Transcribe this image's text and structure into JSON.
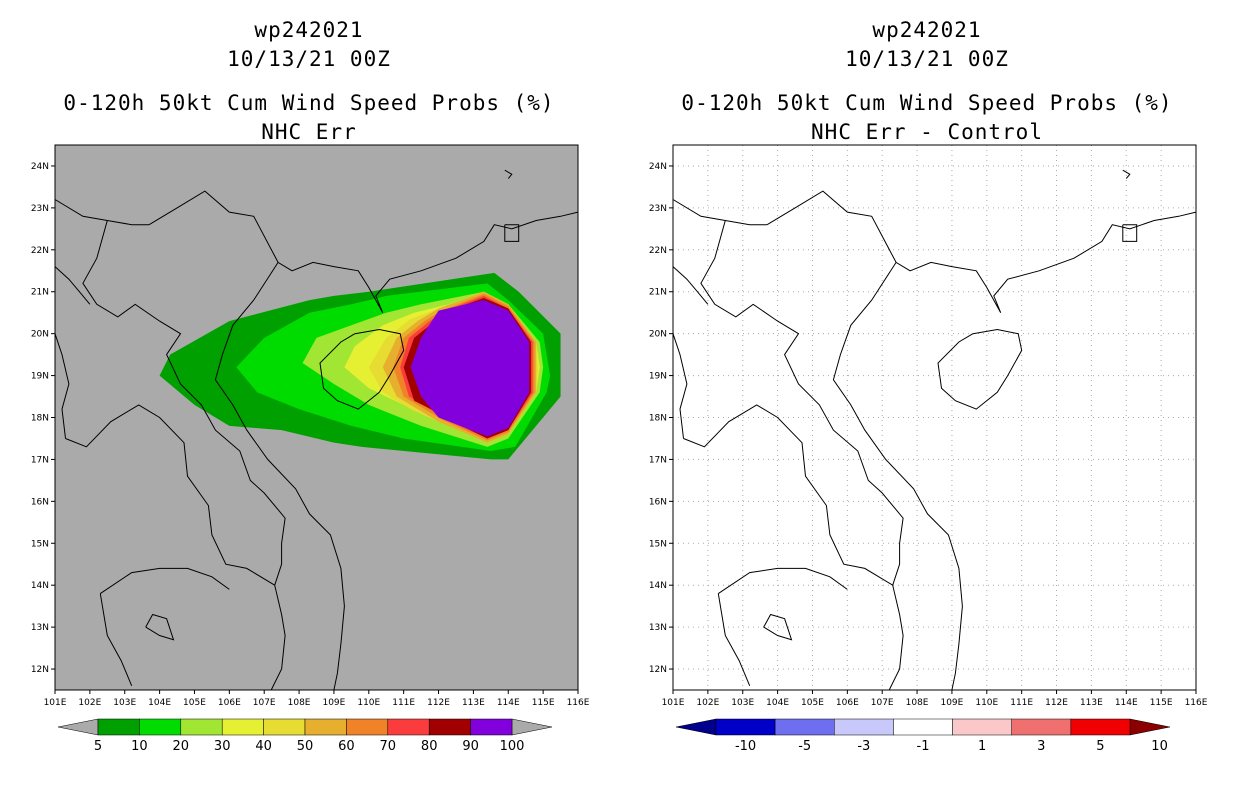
{
  "panels": [
    {
      "id": "left",
      "title_storm": "wp242021",
      "title_time": "10/13/21 00Z",
      "title_product": "0-120h 50kt Cum Wind Speed Probs (%)",
      "title_sub": "NHC Err",
      "background": "#aaaaaa"
    },
    {
      "id": "right",
      "title_storm": "wp242021",
      "title_time": "10/13/21 00Z",
      "title_product": "0-120h 50kt Cum Wind Speed Probs (%)",
      "title_sub": "NHC Err - Control",
      "background": "#ffffff"
    }
  ],
  "map": {
    "lon_range": [
      101,
      116
    ],
    "lat_range": [
      11.5,
      24.5
    ],
    "lon_ticks": [
      "101E",
      "102E",
      "103E",
      "104E",
      "105E",
      "106E",
      "107E",
      "108E",
      "109E",
      "110E",
      "111E",
      "112E",
      "113E",
      "114E",
      "115E",
      "116E"
    ],
    "lat_ticks": [
      "12N",
      "13N",
      "14N",
      "15N",
      "16N",
      "17N",
      "18N",
      "19N",
      "20N",
      "21N",
      "22N",
      "23N",
      "24N"
    ]
  },
  "colorbar_left": {
    "labels": [
      "5",
      "10",
      "20",
      "30",
      "40",
      "50",
      "60",
      "70",
      "80",
      "90",
      "100"
    ],
    "colors": [
      "#00a000",
      "#00dc00",
      "#a0e632",
      "#e6f032",
      "#e6dc32",
      "#e6af2d",
      "#f08228",
      "#fa3c3c",
      "#a00000",
      "#8200dc"
    ],
    "end_color": "#aaaaaa"
  },
  "colorbar_right": {
    "labels": [
      "-10",
      "-5",
      "-3",
      "-1",
      "1",
      "3",
      "5",
      "10"
    ],
    "colors": [
      "#0000c8",
      "#6e6ef0",
      "#c8c8fa",
      "#ffffff",
      "#fac8c8",
      "#f07070",
      "#f00000"
    ],
    "low_end_color": "#00008c",
    "high_end_color": "#8c0000"
  },
  "contours_left": [
    {
      "level": "5",
      "color": "#00a000",
      "lons": [
        104,
        104.3,
        106,
        108.3,
        109,
        110,
        113.6,
        114.3,
        115.5,
        115.5,
        114,
        113.5,
        109.8,
        109,
        107.5,
        106,
        105,
        104
      ],
      "lats": [
        19,
        19.5,
        20.3,
        20.8,
        20.9,
        21,
        21.45,
        21,
        20,
        18.5,
        17,
        17,
        17.3,
        17.4,
        17.7,
        17.8,
        18.3,
        19
      ]
    },
    {
      "level": "10",
      "color": "#00dc00",
      "lons": [
        106.2,
        107,
        108.3,
        109.5,
        110.5,
        113.4,
        114,
        115,
        115.2,
        115.1,
        114.2,
        113.5,
        111,
        109.5,
        108,
        106.8,
        106.2
      ],
      "lats": [
        19.2,
        19.9,
        20.5,
        20.7,
        20.9,
        21.2,
        20.8,
        20,
        19,
        18.6,
        17.3,
        17.2,
        17.5,
        17.8,
        18.2,
        18.6,
        19.2
      ]
    },
    {
      "level": "20",
      "color": "#a0e632",
      "lons": [
        108.1,
        108.5,
        109.5,
        110.5,
        111.5,
        113.3,
        114,
        114.9,
        115,
        114.9,
        114,
        113.4,
        111.5,
        110,
        109,
        108.1
      ],
      "lats": [
        19.3,
        19.9,
        20.2,
        20.5,
        20.7,
        21.0,
        20.7,
        19.8,
        19.2,
        18.6,
        17.5,
        17.3,
        17.8,
        18.3,
        18.8,
        19.3
      ]
    },
    {
      "level": "30",
      "color": "#e6f032",
      "lons": [
        109.3,
        109.6,
        110.4,
        111.3,
        112.3,
        113.3,
        114,
        114.8,
        114.9,
        114.8,
        114,
        113.4,
        112.3,
        111,
        110,
        109.3
      ],
      "lats": [
        19.2,
        19.7,
        20.2,
        20.5,
        20.7,
        21.0,
        20.7,
        19.8,
        19.2,
        18.6,
        17.6,
        17.4,
        17.9,
        18.3,
        18.7,
        19.2
      ]
    },
    {
      "level": "40",
      "color": "#e6dc32",
      "lons": [
        110.0,
        110.5,
        111.2,
        112.0,
        113.3,
        114,
        114.8,
        114.85,
        114.8,
        114,
        113.4,
        112.0,
        111.2,
        110.4,
        110.0
      ],
      "lats": [
        19.2,
        19.9,
        20.35,
        20.6,
        21.0,
        20.7,
        19.8,
        19.2,
        18.6,
        17.6,
        17.4,
        17.9,
        18.2,
        18.6,
        19.2
      ]
    },
    {
      "level": "50",
      "color": "#e6af2d",
      "lons": [
        110.4,
        110.8,
        111.4,
        112.0,
        113.3,
        114,
        114.8,
        114.8,
        114,
        113.4,
        112.0,
        111.4,
        110.8,
        110.4
      ],
      "lats": [
        19.2,
        19.9,
        20.3,
        20.6,
        21.0,
        20.7,
        19.8,
        18.6,
        17.6,
        17.4,
        17.9,
        18.2,
        18.5,
        19.2
      ]
    },
    {
      "level": "60",
      "color": "#f08228",
      "lons": [
        110.7,
        111.0,
        111.6,
        112.1,
        113.3,
        114,
        114.75,
        114.75,
        114,
        113.4,
        112.1,
        111.6,
        111.0,
        110.7
      ],
      "lats": [
        19.2,
        19.9,
        20.3,
        20.55,
        20.95,
        20.65,
        19.8,
        18.6,
        17.65,
        17.45,
        17.95,
        18.2,
        18.5,
        19.2
      ]
    },
    {
      "level": "70",
      "color": "#fa3c3c",
      "lons": [
        110.9,
        111.15,
        111.75,
        112.2,
        113.3,
        114,
        114.7,
        114.7,
        114,
        113.4,
        112.2,
        111.75,
        111.15,
        110.9
      ],
      "lats": [
        19.2,
        19.9,
        20.3,
        20.55,
        20.9,
        20.6,
        19.8,
        18.6,
        17.7,
        17.5,
        17.95,
        18.2,
        18.5,
        19.2
      ]
    },
    {
      "level": "80",
      "color": "#a00000",
      "lons": [
        111.0,
        111.3,
        111.9,
        112.3,
        113.3,
        114,
        114.65,
        114.65,
        114,
        113.4,
        112.3,
        111.9,
        111.3,
        111.0
      ],
      "lats": [
        19.2,
        19.9,
        20.3,
        20.55,
        20.85,
        20.6,
        19.8,
        18.6,
        17.7,
        17.5,
        17.95,
        18.15,
        18.4,
        19.2
      ]
    },
    {
      "level": "90",
      "color": "#8200dc",
      "lons": [
        111.2,
        111.5,
        112.0,
        113.3,
        114,
        114.6,
        114.6,
        114,
        113.4,
        112.0,
        111.5,
        111.2
      ],
      "lats": [
        19.2,
        19.9,
        20.55,
        20.8,
        20.55,
        19.8,
        18.6,
        17.75,
        17.55,
        18.0,
        18.5,
        19.2
      ]
    }
  ]
}
